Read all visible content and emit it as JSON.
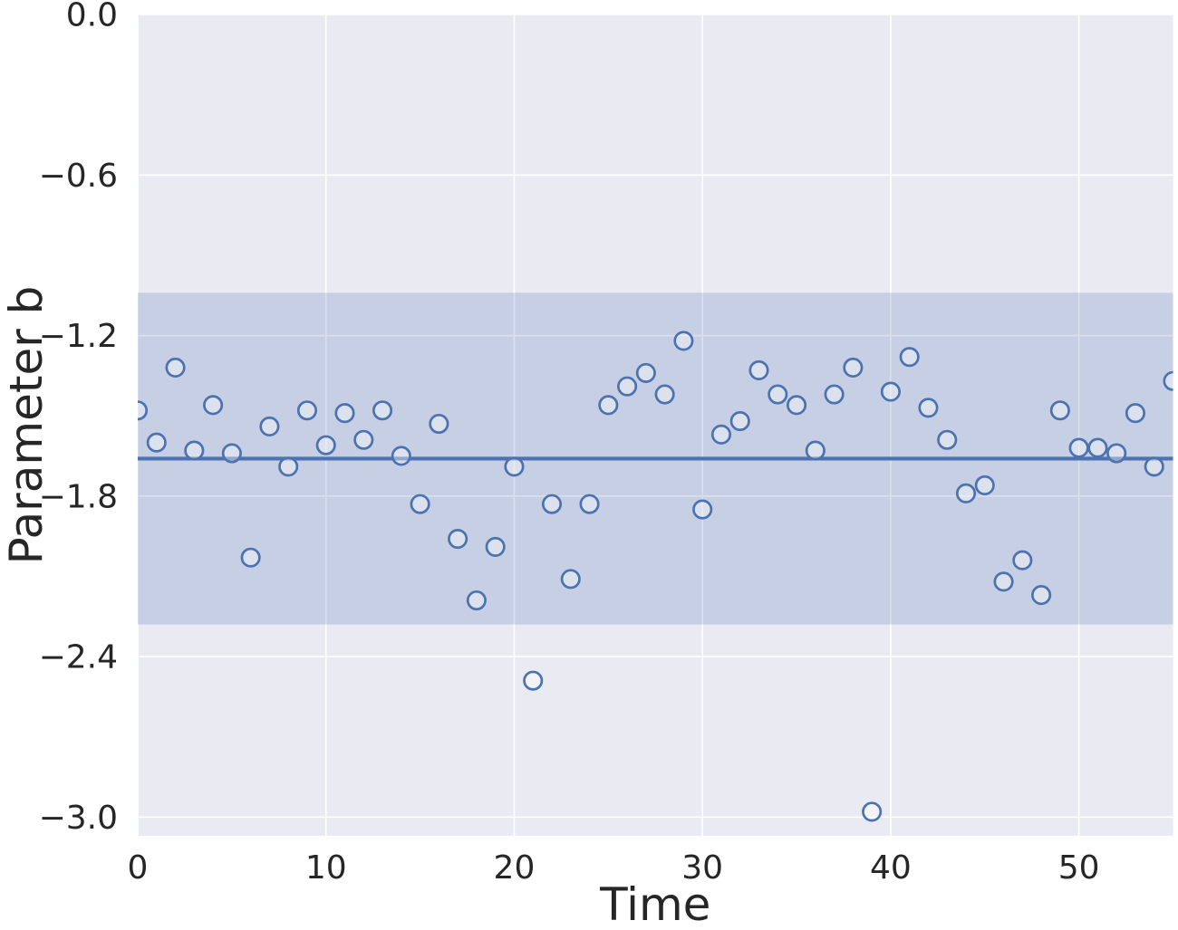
{
  "figure": {
    "xlabel": "Time",
    "ylabel": "Parameter b"
  },
  "chart_data": {
    "type": "scatter",
    "title": "",
    "xlabel": "Time",
    "ylabel": "Parameter b",
    "x": [
      0,
      1,
      2,
      3,
      4,
      5,
      6,
      7,
      8,
      9,
      10,
      11,
      12,
      13,
      14,
      15,
      16,
      17,
      18,
      19,
      20,
      21,
      22,
      23,
      24,
      25,
      26,
      27,
      28,
      29,
      30,
      31,
      32,
      33,
      34,
      35,
      36,
      37,
      38,
      39,
      40,
      41,
      42,
      43,
      44,
      45,
      46,
      47,
      48,
      49,
      50,
      51,
      52,
      53,
      54,
      55
    ],
    "y": [
      -1.48,
      -1.6,
      -1.32,
      -1.63,
      -1.46,
      -1.64,
      -2.03,
      -1.54,
      -1.69,
      -1.48,
      -1.61,
      -1.49,
      -1.59,
      -1.48,
      -1.65,
      -1.83,
      -1.53,
      -1.96,
      -2.19,
      -1.99,
      -1.69,
      -2.49,
      -1.83,
      -2.11,
      -1.83,
      -1.46,
      -1.39,
      -1.34,
      -1.42,
      -1.22,
      -1.85,
      -1.57,
      -1.52,
      -1.33,
      -1.42,
      -1.46,
      -1.63,
      -1.42,
      -1.32,
      -2.98,
      -1.41,
      -1.28,
      -1.47,
      -1.59,
      -1.79,
      -1.76,
      -2.12,
      -2.04,
      -2.17,
      -1.48,
      -1.62,
      -1.62,
      -1.64,
      -1.49,
      -1.69,
      -1.37
    ],
    "mean_line": -1.66,
    "uncertainty_band": [
      -2.28,
      -1.04
    ],
    "xlim": [
      0,
      55
    ],
    "ylim": [
      -3.07,
      0
    ],
    "xticks": [
      0,
      10,
      20,
      30,
      40,
      50
    ],
    "yticks": [
      0,
      -0.6,
      -1.2,
      -1.8,
      -2.4,
      -3.0
    ],
    "xtick_labels": [
      "0",
      "10",
      "20",
      "30",
      "40",
      "50"
    ],
    "ytick_labels": [
      "0.0",
      "−0.6",
      "−1.2",
      "−1.8",
      "−2.4",
      "−3.0"
    ],
    "grid": true,
    "legend": false,
    "colors": {
      "figure_background": "#ffffff",
      "axes_background": "#eaeaf2",
      "grid": "#ffffff",
      "band_fill": "rgba(76,114,176,0.22)",
      "mean_line": "#4c72b0",
      "marker_edge": "#4c72b0",
      "marker_face": "rgba(255,255,255,0.38)",
      "text": "#262626"
    }
  }
}
